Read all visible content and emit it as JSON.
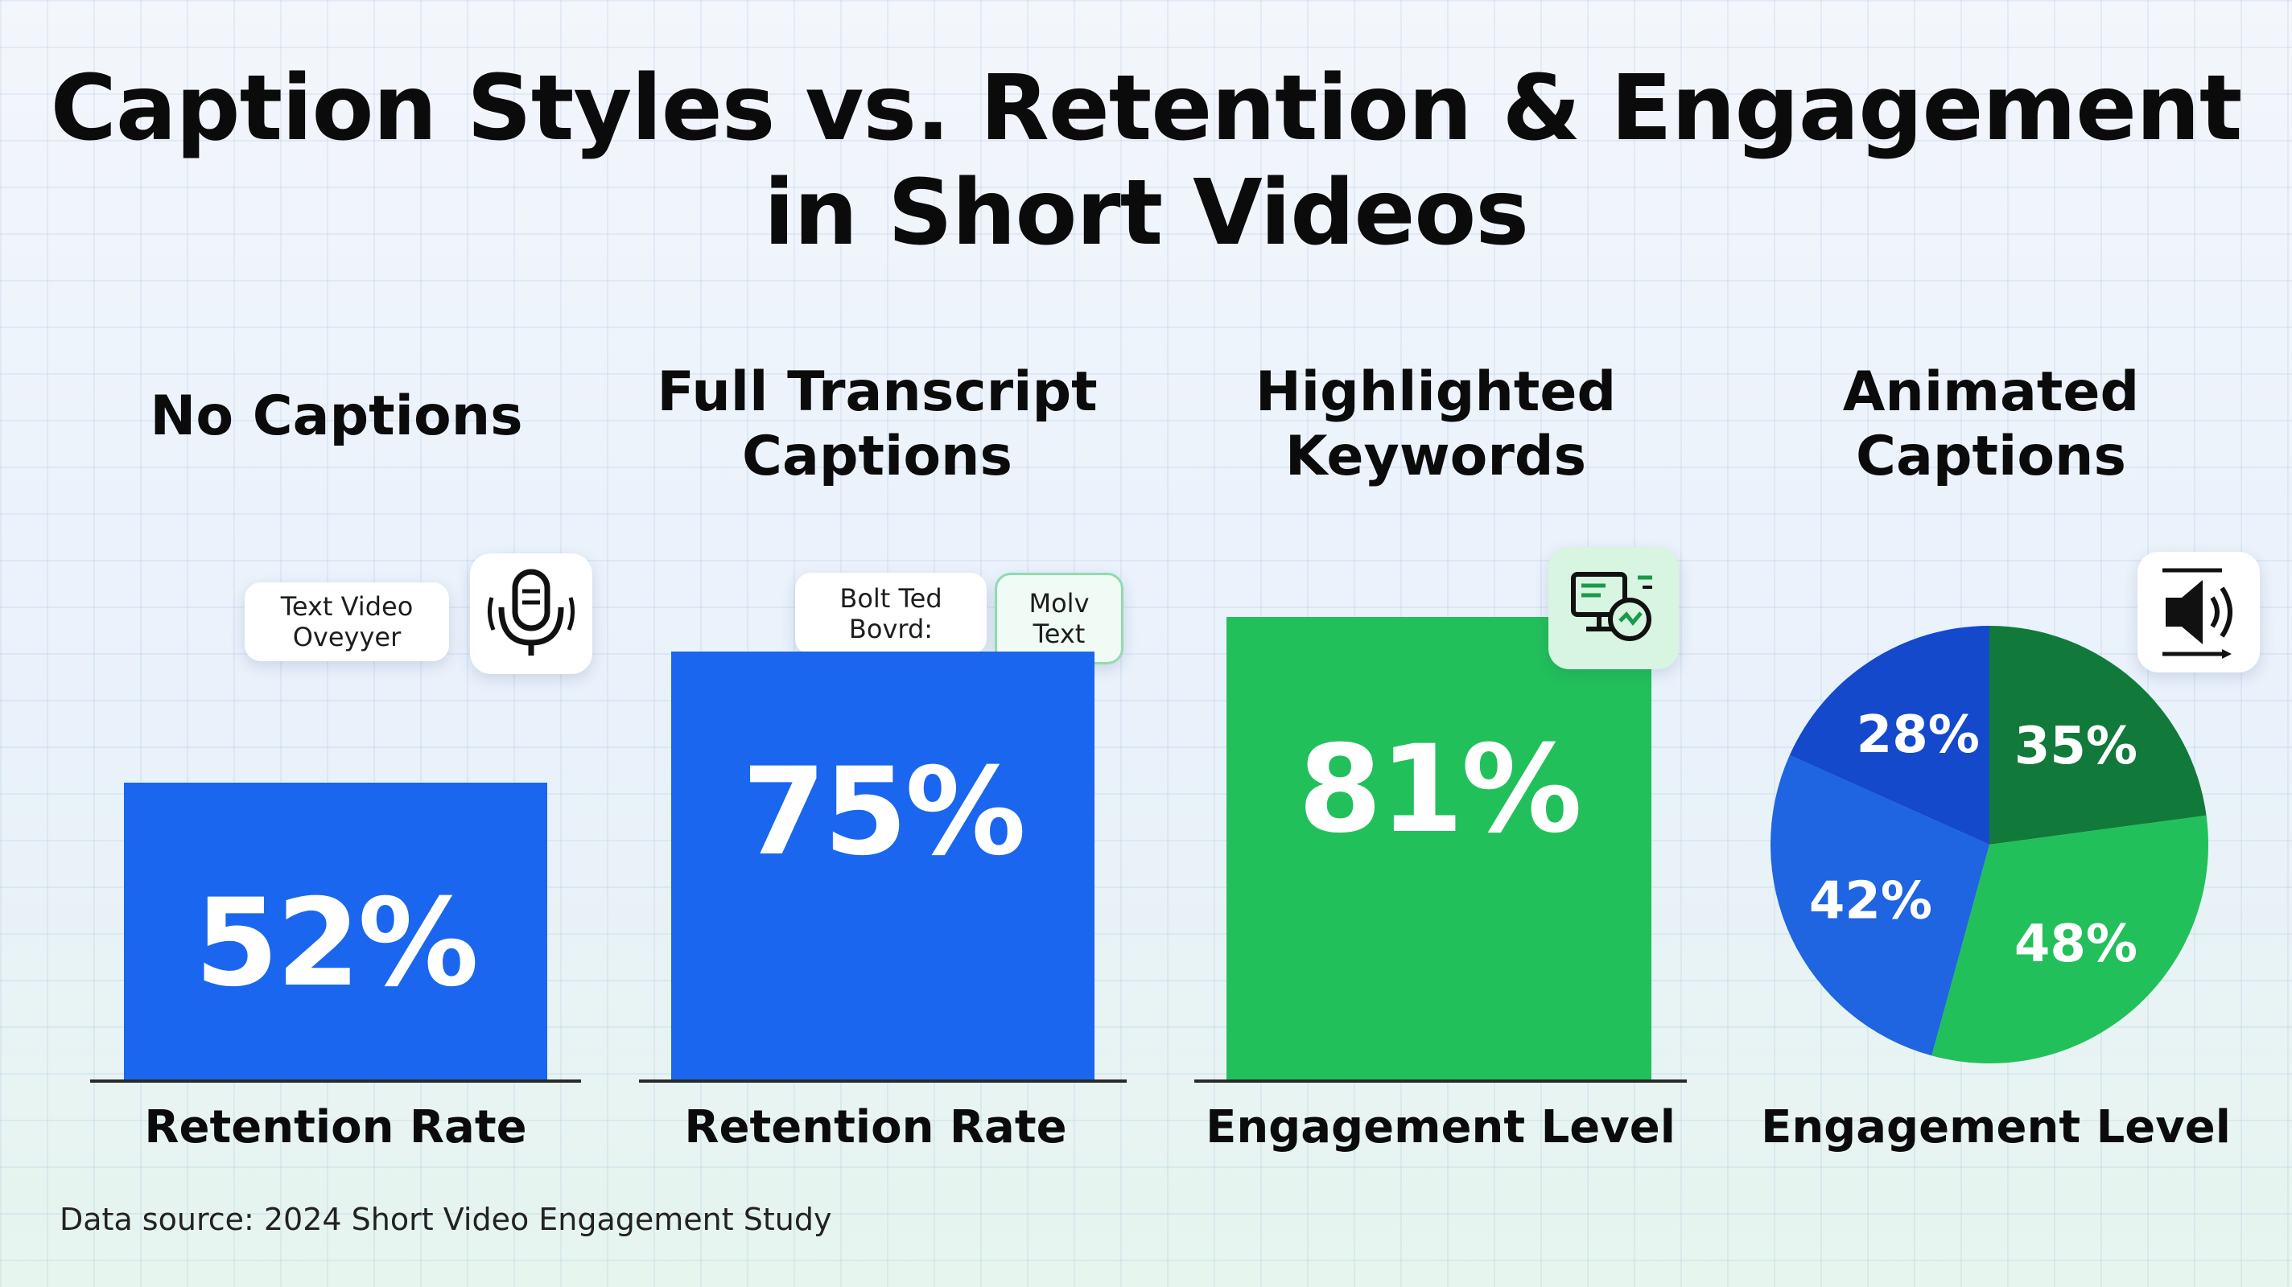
{
  "title_line1": "Caption Styles vs. Retention & Engagement",
  "title_line2": "in Short Videos",
  "colors": {
    "blue": "#1a66ee",
    "green": "#22c05a",
    "dark_green": "#117a3a",
    "mid_blue": "#1f64e0",
    "dark_blue": "#1449cc"
  },
  "chart_data": [
    {
      "type": "bar",
      "title": "No Captions",
      "categories": [
        "No Captions"
      ],
      "values": [
        52
      ],
      "value_label": "52%",
      "xlabel": "Retention Rate",
      "ylim": [
        0,
        100
      ],
      "callout": "Text Video\nOveyyer",
      "icon": "microphone-icon"
    },
    {
      "type": "bar",
      "title": "Full Transcript Captions",
      "title_lines": [
        "Full Transcript",
        "Captions"
      ],
      "categories": [
        "Full Transcript Captions"
      ],
      "values": [
        75
      ],
      "value_label": "75%",
      "xlabel": "Retention Rate",
      "ylim": [
        0,
        100
      ],
      "callout": "Bolt Ted\nBovrd:",
      "callout2": "Molv\nText"
    },
    {
      "type": "bar",
      "title": "Highlighted Keywords",
      "title_lines": [
        "Highlighted",
        "Keywords"
      ],
      "categories": [
        "Highlighted Keywords"
      ],
      "values": [
        81
      ],
      "value_label": "81%",
      "xlabel": "Engagement Level",
      "ylim": [
        0,
        100
      ],
      "icon": "monitor-highlight-icon"
    },
    {
      "type": "pie",
      "title": "Animated Captions",
      "title_lines": [
        "Animated",
        "Captions"
      ],
      "slices": [
        {
          "label": "35%",
          "value": 35,
          "color": "#117a3a"
        },
        {
          "label": "48%",
          "value": 48,
          "color": "#22c05a"
        },
        {
          "label": "42%",
          "value": 42,
          "color": "#1f64e0"
        },
        {
          "label": "28%",
          "value": 28,
          "color": "#1449cc"
        }
      ],
      "xlabel": "Engagement Level",
      "icon": "speaker-icon"
    }
  ],
  "source": "Data source: 2024 Short Video Engagement Study"
}
